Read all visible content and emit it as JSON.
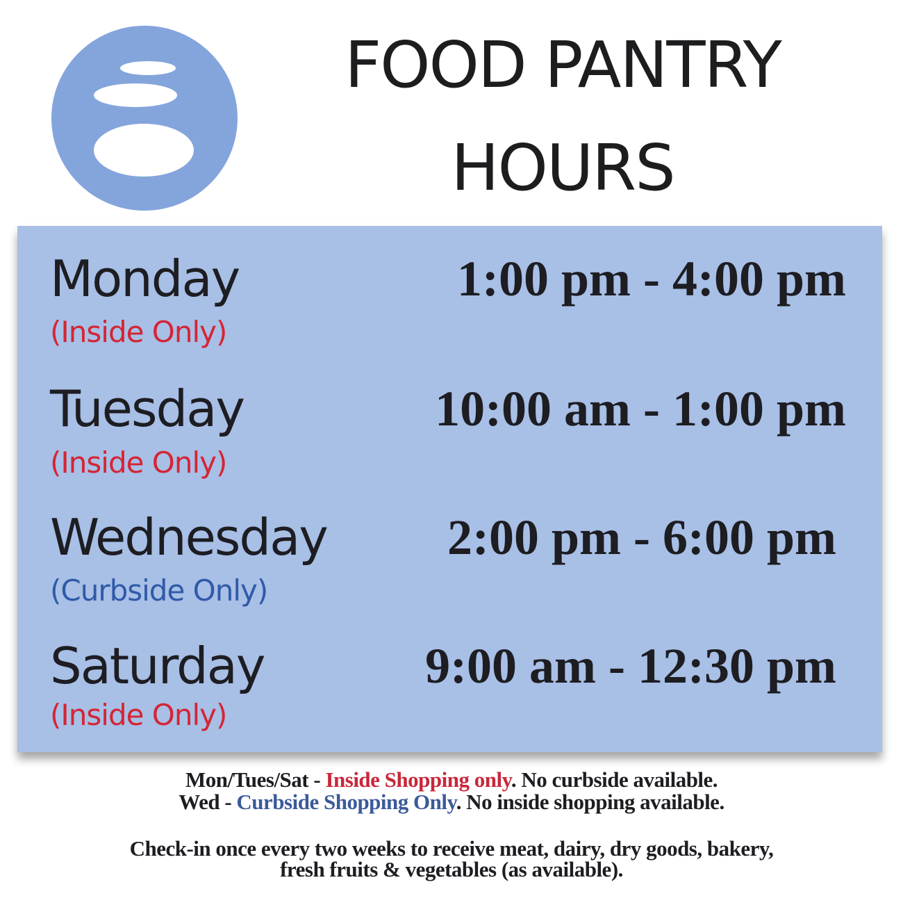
{
  "title": {
    "line1": "FOOD PANTRY",
    "line2": "HOURS"
  },
  "logo": {
    "icon": "stacked-stones-logo",
    "color": "#84a5dc"
  },
  "colors": {
    "panel": "#a8bfe6",
    "inside": "#d42534",
    "curbside": "#2f5aa8"
  },
  "schedule": [
    {
      "day": "Monday",
      "note": "(Inside Only)",
      "time": "1:00 pm - 4:00 pm"
    },
    {
      "day": "Tuesday",
      "note": "(Inside Only)",
      "time": "10:00 am - 1:00 pm"
    },
    {
      "day": "Wednesday",
      "note": "(Curbside Only)",
      "time": "2:00 pm - 6:00 pm"
    },
    {
      "day": "Saturday",
      "note": "(Inside Only)",
      "time": "9:00 am - 12:30 pm"
    }
  ],
  "footer": {
    "line1": {
      "prefix": "Mon/Tues/Sat - ",
      "highlight": "Inside Shopping only",
      "suffix": ". No curbside available."
    },
    "line2": {
      "prefix": "Wed - ",
      "highlight": "Curbside Shopping Only",
      "suffix": ". No inside shopping available."
    },
    "checkin1": "Check-in once every two weeks to receive meat, dairy, dry goods, bakery,",
    "checkin2": "fresh fruits & vegetables (as available)."
  }
}
